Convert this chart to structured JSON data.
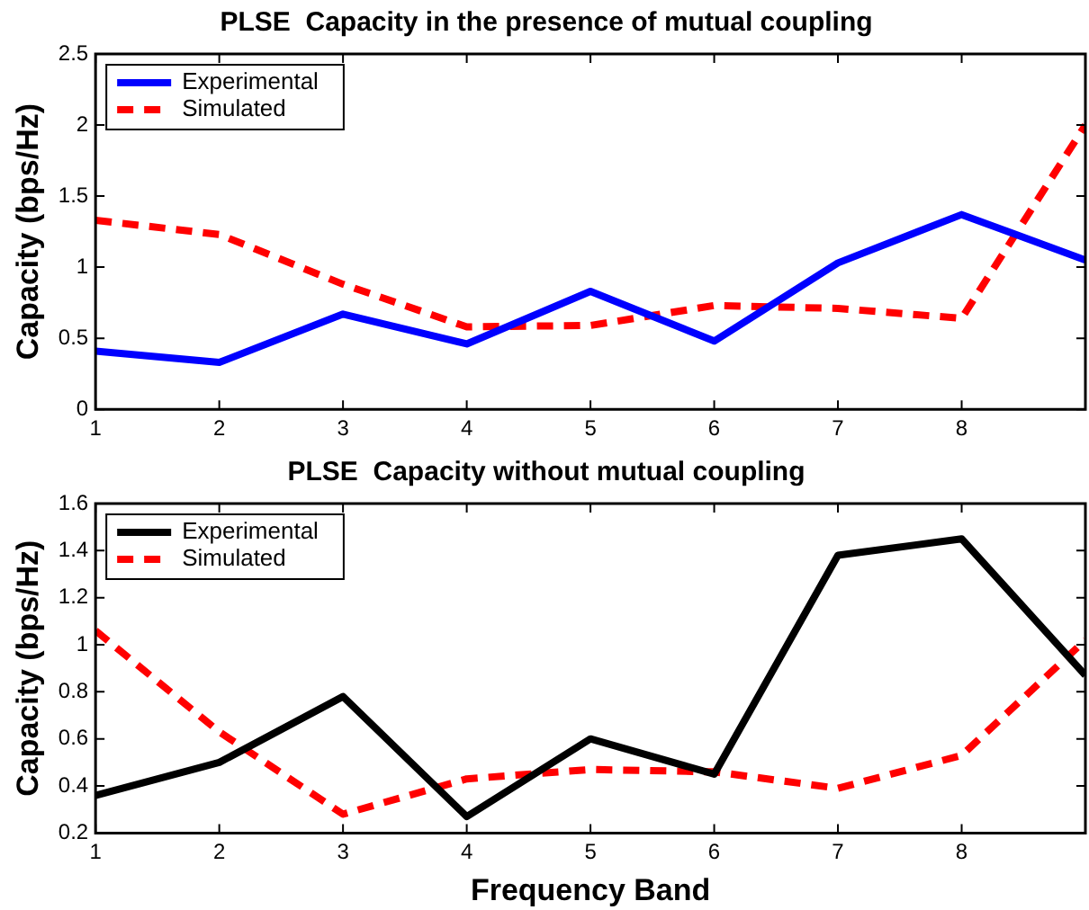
{
  "chart_data": [
    {
      "type": "line",
      "title": "PLSE  Capacity in the presence of mutual coupling",
      "ylabel": "Capacity (bps/Hz)",
      "x": [
        1,
        2,
        3,
        4,
        5,
        6,
        7,
        8,
        9
      ],
      "xlim": [
        1,
        9
      ],
      "xticks": [
        1,
        2,
        3,
        4,
        5,
        6,
        7,
        8
      ],
      "ylim": [
        0,
        2.5
      ],
      "yticks": [
        0,
        0.5,
        1,
        1.5,
        2,
        2.5
      ],
      "legend": "top left",
      "marker": "none",
      "series": [
        {
          "name": "Experimental",
          "color": "#0000ff",
          "line_style": "solid",
          "values": [
            0.41,
            0.33,
            0.67,
            0.46,
            0.83,
            0.48,
            1.03,
            1.37,
            1.05
          ]
        },
        {
          "name": "Simulated",
          "color": "#ff0000",
          "line_style": "dashed",
          "values": [
            1.33,
            1.23,
            0.88,
            0.58,
            0.59,
            0.73,
            0.71,
            0.64,
            2.0
          ]
        }
      ]
    },
    {
      "type": "line",
      "title": "PLSE  Capacity without mutual coupling",
      "xlabel": "Frequency Band",
      "ylabel": "Capacity (bps/Hz)",
      "x": [
        1,
        2,
        3,
        4,
        5,
        6,
        7,
        8,
        9
      ],
      "xlim": [
        1,
        9
      ],
      "xticks": [
        1,
        2,
        3,
        4,
        5,
        6,
        7,
        8
      ],
      "ylim": [
        0.2,
        1.6
      ],
      "yticks": [
        0.2,
        0.4,
        0.6,
        0.8,
        1,
        1.2,
        1.4,
        1.6
      ],
      "legend": "top left",
      "marker": "none",
      "series": [
        {
          "name": "Experimental",
          "color": "#000000",
          "line_style": "solid",
          "values": [
            0.36,
            0.5,
            0.78,
            0.27,
            0.6,
            0.45,
            1.38,
            1.45,
            0.87
          ]
        },
        {
          "name": "Simulated",
          "color": "#ff0000",
          "line_style": "dashed",
          "values": [
            1.06,
            0.63,
            0.28,
            0.43,
            0.47,
            0.46,
            0.39,
            0.53,
            1.02
          ]
        }
      ]
    }
  ]
}
